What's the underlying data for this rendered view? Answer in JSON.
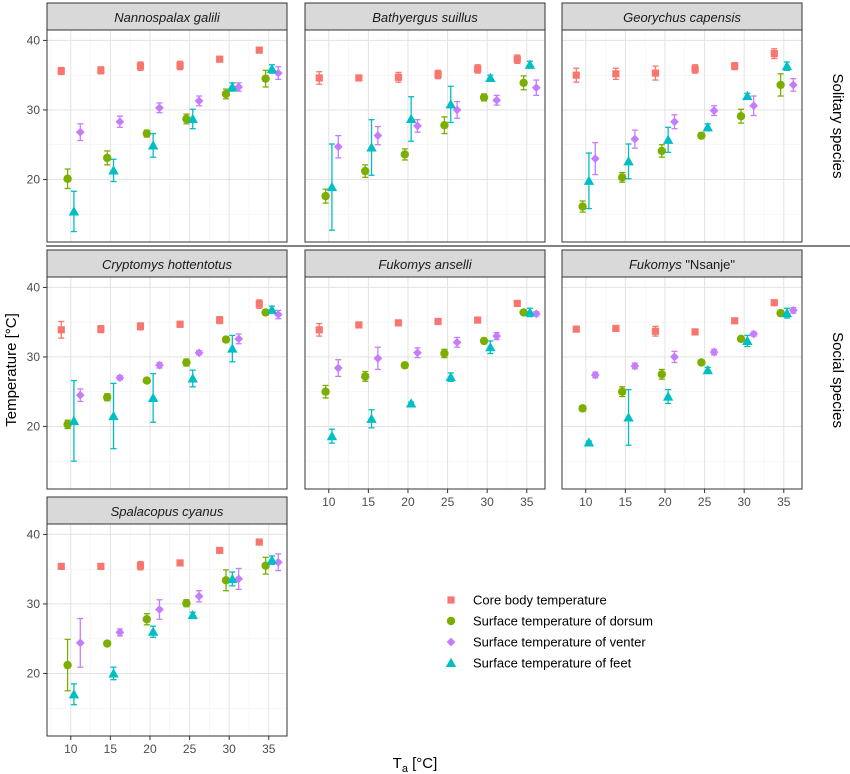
{
  "chart_data": {
    "type": "scatter",
    "error_bars": true,
    "ylabel": "Temperature [°C]",
    "xlabel_main": "T",
    "xlabel_sub": "a",
    "xlabel_unit": " [°C]",
    "xlim": [
      7,
      37.3
    ],
    "ylim": [
      11,
      41.5
    ],
    "x_ticks": [
      10,
      15,
      20,
      25,
      30,
      35
    ],
    "y_ticks": [
      20,
      30,
      40
    ],
    "grid": true,
    "row_labels": [
      "Solitary species",
      "Social species"
    ],
    "legend_position": "bottom-right",
    "series_styles": [
      {
        "name": "Core body temperature",
        "color": "#F8766D",
        "shape": "square"
      },
      {
        "name": "Surface temperature of dorsum",
        "color": "#7CAE00",
        "shape": "circle"
      },
      {
        "name": "Surface temperature of venter",
        "color": "#C77CFF",
        "shape": "diamond"
      },
      {
        "name": "Surface temperature of feet",
        "color": "#00BFC4",
        "shape": "triangle"
      }
    ],
    "panels": [
      {
        "title_parts": [
          {
            "text": "Nannospalax galili",
            "italic": true
          }
        ],
        "series": [
          {
            "name": "Core body temperature",
            "x": [
              8.8,
              13.8,
              18.8,
              23.8,
              28.8,
              33.8
            ],
            "y": [
              35.6,
              35.7,
              36.3,
              36.4,
              37.3,
              38.6
            ],
            "err": [
              0.5,
              0.5,
              0.6,
              0.6,
              0.3,
              0.3
            ]
          },
          {
            "name": "Surface temperature of dorsum",
            "x": [
              9.6,
              14.6,
              19.6,
              24.6,
              29.6,
              34.6
            ],
            "y": [
              20.1,
              23.1,
              26.6,
              28.7,
              32.3,
              34.5
            ],
            "err": [
              1.4,
              1.0,
              0.5,
              0.7,
              0.7,
              1.2
            ]
          },
          {
            "name": "Surface temperature of venter",
            "x": [
              11.2,
              16.2,
              21.2,
              26.2,
              31.2,
              36.2
            ],
            "y": [
              26.8,
              28.3,
              30.3,
              31.3,
              33.3,
              35.3
            ],
            "err": [
              1.2,
              0.8,
              0.7,
              0.7,
              0.6,
              0.9
            ]
          },
          {
            "name": "Surface temperature of feet",
            "x": [
              10.4,
              15.4,
              20.4,
              25.4,
              30.4,
              35.4
            ],
            "y": [
              15.4,
              21.3,
              24.9,
              28.7,
              33.3,
              35.9
            ],
            "err": [
              2.9,
              1.6,
              1.7,
              1.4,
              0.6,
              0.6
            ]
          }
        ]
      },
      {
        "title_parts": [
          {
            "text": "Bathyergus suillus",
            "italic": true
          }
        ],
        "series": [
          {
            "name": "Core body temperature",
            "x": [
              8.8,
              13.8,
              18.8,
              23.8,
              28.8,
              33.8
            ],
            "y": [
              34.6,
              34.6,
              34.7,
              35.1,
              35.9,
              37.3
            ],
            "err": [
              0.9,
              0.3,
              0.7,
              0.6,
              0.6,
              0.6
            ]
          },
          {
            "name": "Surface temperature of dorsum",
            "x": [
              9.6,
              14.6,
              19.6,
              24.6,
              29.6,
              34.6
            ],
            "y": [
              17.6,
              21.2,
              23.6,
              27.8,
              31.8,
              33.9
            ],
            "err": [
              1.0,
              0.9,
              0.8,
              1.2,
              0.5,
              1.0
            ]
          },
          {
            "name": "Surface temperature of venter",
            "x": [
              11.2,
              16.2,
              21.2,
              26.2,
              31.2,
              36.2
            ],
            "y": [
              24.7,
              26.3,
              27.7,
              30.0,
              31.4,
              33.2
            ],
            "err": [
              1.6,
              1.3,
              0.9,
              1.2,
              0.7,
              1.1
            ]
          },
          {
            "name": "Surface temperature of feet",
            "x": [
              10.4,
              15.4,
              20.4,
              25.4,
              30.4,
              35.4
            ],
            "y": [
              18.9,
              24.6,
              28.7,
              30.8,
              34.6,
              36.5
            ],
            "err": [
              6.2,
              4.0,
              3.2,
              2.6,
              0.4,
              0.5
            ]
          }
        ]
      },
      {
        "title_parts": [
          {
            "text": "Georychus capensis",
            "italic": true
          }
        ],
        "series": [
          {
            "name": "Core body temperature",
            "x": [
              8.8,
              13.8,
              18.8,
              23.8,
              28.8,
              33.8
            ],
            "y": [
              35.0,
              35.2,
              35.3,
              35.9,
              36.3,
              38.1
            ],
            "err": [
              1.0,
              0.8,
              1.0,
              0.6,
              0.5,
              0.7
            ]
          },
          {
            "name": "Surface temperature of dorsum",
            "x": [
              9.6,
              14.6,
              19.6,
              24.6,
              29.6,
              34.6
            ],
            "y": [
              16.1,
              20.3,
              24.1,
              26.3,
              29.1,
              33.6
            ],
            "err": [
              0.8,
              0.7,
              0.9,
              0.4,
              1.0,
              1.6
            ]
          },
          {
            "name": "Surface temperature of venter",
            "x": [
              11.2,
              16.2,
              21.2,
              26.2,
              31.2,
              36.2
            ],
            "y": [
              23.0,
              25.8,
              28.3,
              29.9,
              30.6,
              33.6
            ],
            "err": [
              2.3,
              1.3,
              1.0,
              0.7,
              1.4,
              0.9
            ]
          },
          {
            "name": "Surface temperature of feet",
            "x": [
              10.4,
              15.4,
              20.4,
              25.4,
              30.4,
              35.4
            ],
            "y": [
              19.8,
              22.6,
              25.7,
              27.5,
              32.0,
              36.3
            ],
            "err": [
              4.0,
              2.5,
              1.8,
              0.5,
              0.4,
              0.6
            ]
          }
        ]
      },
      {
        "title_parts": [
          {
            "text": "Cryptomys hottentotus",
            "italic": true
          }
        ],
        "series": [
          {
            "name": "Core body temperature",
            "x": [
              8.8,
              13.8,
              18.8,
              23.8,
              28.8,
              33.8
            ],
            "y": [
              33.9,
              34.0,
              34.4,
              34.7,
              35.3,
              37.6
            ],
            "err": [
              1.2,
              0.5,
              0.5,
              0.4,
              0.5,
              0.6
            ]
          },
          {
            "name": "Surface temperature of dorsum",
            "x": [
              9.6,
              14.6,
              19.6,
              24.6,
              29.6,
              34.6
            ],
            "y": [
              20.3,
              24.2,
              26.6,
              29.2,
              32.5,
              36.4
            ],
            "err": [
              0.6,
              0.5,
              0.2,
              0.5,
              0.4,
              0.4
            ]
          },
          {
            "name": "Surface temperature of venter",
            "x": [
              11.2,
              16.2,
              21.2,
              26.2,
              31.2,
              36.2
            ],
            "y": [
              24.5,
              27.0,
              28.8,
              30.6,
              32.6,
              36.1
            ],
            "err": [
              0.9,
              0.3,
              0.4,
              0.3,
              0.7,
              0.6
            ]
          },
          {
            "name": "Surface temperature of feet",
            "x": [
              10.4,
              15.4,
              20.4,
              25.4,
              30.4,
              35.4
            ],
            "y": [
              20.8,
              21.5,
              24.1,
              26.9,
              31.2,
              36.8
            ],
            "err": [
              5.8,
              4.7,
              3.5,
              1.2,
              1.9,
              0.5
            ]
          }
        ]
      },
      {
        "title_parts": [
          {
            "text": "Fukomys anselli",
            "italic": true
          }
        ],
        "series": [
          {
            "name": "Core body temperature",
            "x": [
              8.8,
              13.8,
              18.8,
              23.8,
              28.8,
              33.8
            ],
            "y": [
              33.9,
              34.6,
              34.9,
              35.1,
              35.3,
              37.7
            ],
            "err": [
              0.9,
              0.3,
              0.3,
              0.3,
              0.2,
              0.2
            ]
          },
          {
            "name": "Surface temperature of dorsum",
            "x": [
              9.6,
              14.6,
              19.6,
              24.6,
              29.6,
              34.6
            ],
            "y": [
              25.0,
              27.2,
              28.8,
              30.5,
              32.3,
              36.4
            ],
            "err": [
              0.9,
              0.7,
              0.4,
              0.6,
              0.4,
              0.3
            ]
          },
          {
            "name": "Surface temperature of venter",
            "x": [
              11.2,
              16.2,
              21.2,
              26.2,
              31.2,
              36.2
            ],
            "y": [
              28.4,
              29.8,
              30.6,
              32.1,
              33.0,
              36.2
            ],
            "err": [
              1.2,
              1.6,
              0.7,
              0.7,
              0.5,
              0.3
            ]
          },
          {
            "name": "Surface temperature of feet",
            "x": [
              10.4,
              15.4,
              20.4,
              25.4,
              30.4,
              35.4
            ],
            "y": [
              18.6,
              21.1,
              23.3,
              27.1,
              31.4,
              36.4
            ],
            "err": [
              1.0,
              1.3,
              0.2,
              0.6,
              0.9,
              0.6
            ]
          }
        ]
      },
      {
        "title_parts": [
          {
            "text": "Fukomys",
            "italic": true
          },
          {
            "text": " \"Nsanje\"",
            "italic": false
          }
        ],
        "series": [
          {
            "name": "Core body temperature",
            "x": [
              8.8,
              13.8,
              18.8,
              23.8,
              28.8,
              33.8
            ],
            "y": [
              34.0,
              34.1,
              33.7,
              33.6,
              35.2,
              37.8
            ],
            "err": [
              0.2,
              0.2,
              0.7,
              0.2,
              0.2,
              0.2
            ]
          },
          {
            "name": "Surface temperature of dorsum",
            "x": [
              9.6,
              14.6,
              19.6,
              24.6,
              29.6,
              34.6
            ],
            "y": [
              22.6,
              25.0,
              27.5,
              29.2,
              32.6,
              36.3
            ],
            "err": [
              0.4,
              0.7,
              0.7,
              0.3,
              0.3,
              0.4
            ]
          },
          {
            "name": "Surface temperature of venter",
            "x": [
              11.2,
              16.2,
              21.2,
              26.2,
              31.2,
              36.2
            ],
            "y": [
              27.4,
              28.7,
              30.0,
              30.7,
              33.3,
              36.7
            ],
            "err": [
              0.4,
              0.4,
              0.8,
              0.4,
              0.3,
              0.4
            ]
          },
          {
            "name": "Surface temperature of feet",
            "x": [
              10.4,
              15.4,
              20.4,
              25.4,
              30.4,
              35.4
            ],
            "y": [
              17.7,
              21.3,
              24.3,
              28.1,
              32.3,
              36.3
            ],
            "err": [
              0.2,
              4.0,
              1.0,
              0.4,
              0.8,
              0.7
            ]
          }
        ]
      },
      {
        "title_parts": [
          {
            "text": "Spalacopus cyanus",
            "italic": true
          }
        ],
        "series": [
          {
            "name": "Core body temperature",
            "x": [
              8.8,
              13.8,
              18.8,
              23.8,
              28.8,
              33.8
            ],
            "y": [
              35.4,
              35.4,
              35.5,
              35.9,
              37.7,
              38.9
            ],
            "err": [
              0.2,
              0.4,
              0.6,
              0.2,
              0.2,
              0.2
            ]
          },
          {
            "name": "Surface temperature of dorsum",
            "x": [
              9.6,
              14.6,
              19.6,
              24.6,
              29.6,
              34.6
            ],
            "y": [
              21.2,
              24.3,
              27.8,
              30.1,
              33.4,
              35.5
            ],
            "err": [
              3.7,
              0.3,
              0.8,
              0.5,
              1.5,
              1.2
            ]
          },
          {
            "name": "Surface temperature of venter",
            "x": [
              11.2,
              16.2,
              21.2,
              26.2,
              31.2,
              36.2
            ],
            "y": [
              24.4,
              25.9,
              29.2,
              31.1,
              33.6,
              36.0
            ],
            "err": [
              3.5,
              0.5,
              1.4,
              0.8,
              1.5,
              1.2
            ]
          },
          {
            "name": "Surface temperature of feet",
            "x": [
              10.4,
              15.4,
              20.4,
              25.4,
              30.4,
              35.4
            ],
            "y": [
              17.0,
              20.0,
              26.0,
              28.4,
              33.6,
              36.3
            ],
            "err": [
              1.5,
              0.9,
              0.8,
              0.4,
              1.0,
              0.6
            ]
          }
        ]
      }
    ]
  }
}
